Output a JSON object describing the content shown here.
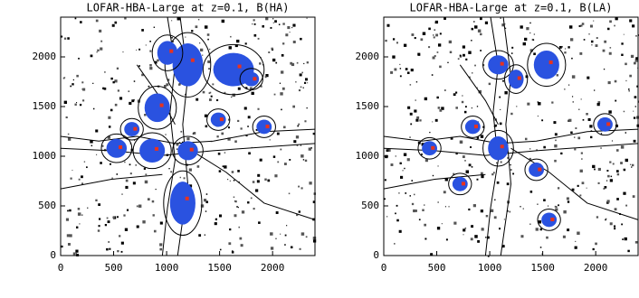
{
  "chart_data": [
    {
      "type": "image",
      "title": "LOFAR-HBA-Large at z=0.1, B(HA)",
      "xlim": [
        0,
        2400
      ],
      "ylim": [
        0,
        2400
      ],
      "xticks": [
        0,
        500,
        1000,
        1500,
        2000
      ],
      "yticks": [
        0,
        500,
        1000,
        1500,
        2000
      ]
    },
    {
      "type": "image",
      "title": "LOFAR-HBA-Large at z=0.1, B(LA)",
      "xlim": [
        0,
        2400
      ],
      "ylim": [
        0,
        2400
      ],
      "xticks": [
        0,
        500,
        1000,
        1500,
        2000
      ],
      "yticks": [
        0,
        500,
        1000,
        1500,
        2000
      ]
    }
  ]
}
